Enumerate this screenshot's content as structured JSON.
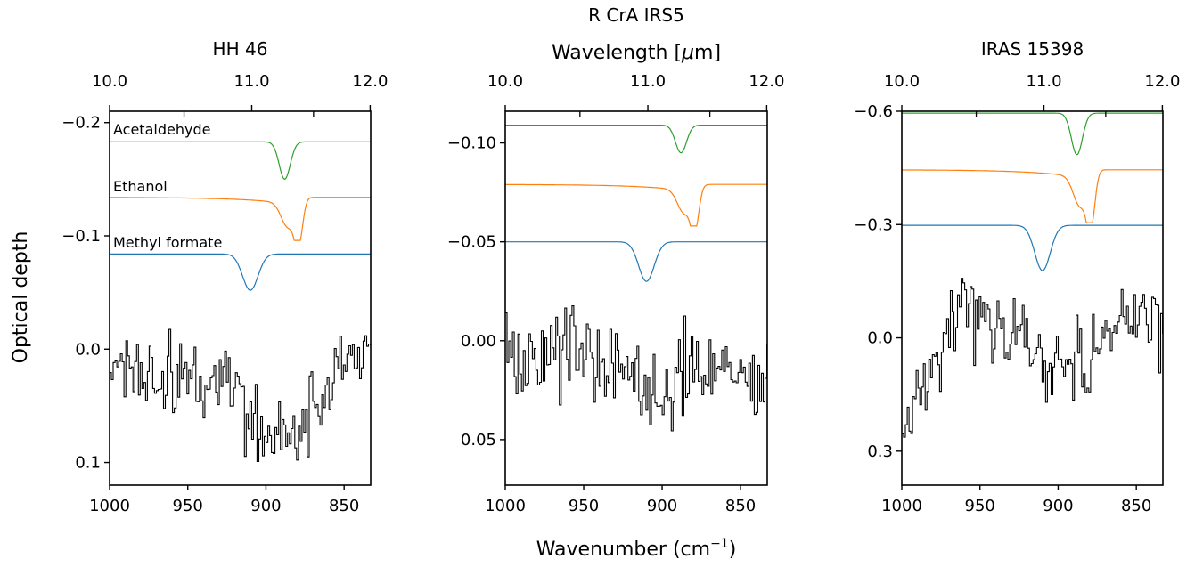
{
  "figure": {
    "suptitle": "R CrA IRS5",
    "top_axis_label_prefix": "Wavelength [",
    "top_axis_label_mu": "μ",
    "top_axis_label_suffix": "m]",
    "x_axis_label_main": "Wavenumber (cm",
    "x_axis_label_sup": "−1",
    "x_axis_label_close": ")",
    "y_axis_label": "Optical depth"
  },
  "chart_data": [
    {
      "type": "line",
      "title": "HH 46",
      "xlim": [
        1000,
        833
      ],
      "ylim": [
        0.12,
        -0.21
      ],
      "xticks": [
        {
          "value": 1000,
          "label": "1000"
        },
        {
          "value": 950,
          "label": "950"
        },
        {
          "value": 900,
          "label": "900"
        },
        {
          "value": 850,
          "label": "850"
        }
      ],
      "yticks": [
        {
          "value": -0.2,
          "label": "−0.2"
        },
        {
          "value": -0.1,
          "label": "−0.1"
        },
        {
          "value": 0.0,
          "label": "0.0"
        },
        {
          "value": 0.1,
          "label": "0.1"
        }
      ],
      "top_ticks": [
        {
          "value": 10.0,
          "label": "10.0"
        },
        {
          "value": 11.0,
          "label": "11.0"
        },
        {
          "value": 12.0,
          "label": "12.0"
        }
      ],
      "top_minor": [
        10.5,
        11.5
      ],
      "series": [
        {
          "name": "Methyl formate",
          "color": "#1f77b4",
          "offset": -0.084,
          "center": 910,
          "depth": 0.032,
          "width": 7,
          "baseline_slope": 0
        },
        {
          "name": "Ethanol",
          "color": "#ff7f0e",
          "offset": -0.134,
          "center": 879,
          "depth": 0.038,
          "width": 3.5,
          "shoulder": 886,
          "baseline_slope": 0
        },
        {
          "name": "Acetaldehyde",
          "color": "#2ca02c",
          "offset": -0.183,
          "center": 888,
          "depth": 0.033,
          "width": 5,
          "baseline_slope": 0
        }
      ],
      "observed": {
        "color": "#000000",
        "noise": 0.022,
        "profile": [
          {
            "x": 1000,
            "y": 0.02
          },
          {
            "x": 960,
            "y": 0.025
          },
          {
            "x": 920,
            "y": 0.03
          },
          {
            "x": 900,
            "y": 0.075
          },
          {
            "x": 880,
            "y": 0.07
          },
          {
            "x": 860,
            "y": 0.035
          },
          {
            "x": 845,
            "y": 0.005
          },
          {
            "x": 833,
            "y": -0.01
          }
        ]
      }
    },
    {
      "type": "line",
      "title": "",
      "xlim": [
        1000,
        833
      ],
      "ylim": [
        0.073,
        -0.116
      ],
      "xticks": [
        {
          "value": 1000,
          "label": "1000"
        },
        {
          "value": 950,
          "label": "950"
        },
        {
          "value": 900,
          "label": "900"
        },
        {
          "value": 850,
          "label": "850"
        }
      ],
      "yticks": [
        {
          "value": -0.1,
          "label": "−0.10"
        },
        {
          "value": -0.05,
          "label": "−0.05"
        },
        {
          "value": 0.0,
          "label": "0.00"
        },
        {
          "value": 0.05,
          "label": "0.05"
        }
      ],
      "top_ticks": [
        {
          "value": 10.0,
          "label": "10.0"
        },
        {
          "value": 11.0,
          "label": "11.0"
        },
        {
          "value": 12.0,
          "label": "12.0"
        }
      ],
      "top_minor": [
        10.5,
        11.5
      ],
      "series": [
        {
          "name": "Methyl formate",
          "color": "#1f77b4",
          "offset": -0.05,
          "center": 910,
          "depth": 0.02,
          "width": 7,
          "baseline_slope": 0
        },
        {
          "name": "Ethanol",
          "color": "#ff7f0e",
          "offset": -0.079,
          "center": 879,
          "depth": 0.021,
          "width": 3.5,
          "shoulder": 886,
          "baseline_slope": 0
        },
        {
          "name": "Acetaldehyde",
          "color": "#2ca02c",
          "offset": -0.109,
          "center": 888,
          "depth": 0.014,
          "width": 5,
          "baseline_slope": 0
        }
      ],
      "observed": {
        "color": "#000000",
        "noise": 0.014,
        "profile": [
          {
            "x": 1000,
            "y": 0.005
          },
          {
            "x": 950,
            "y": 0.008
          },
          {
            "x": 920,
            "y": 0.015
          },
          {
            "x": 905,
            "y": 0.03
          },
          {
            "x": 890,
            "y": 0.025
          },
          {
            "x": 860,
            "y": 0.015
          },
          {
            "x": 833,
            "y": 0.02
          }
        ]
      }
    },
    {
      "type": "line",
      "title": "IRAS 15398",
      "xlim": [
        1000,
        833
      ],
      "ylim": [
        0.39,
        -0.6
      ],
      "xticks": [
        {
          "value": 1000,
          "label": "1000"
        },
        {
          "value": 950,
          "label": "950"
        },
        {
          "value": 900,
          "label": "900"
        },
        {
          "value": 850,
          "label": "850"
        }
      ],
      "yticks": [
        {
          "value": -0.6,
          "label": "−0.6"
        },
        {
          "value": -0.3,
          "label": "−0.3"
        },
        {
          "value": 0.0,
          "label": "0.0"
        },
        {
          "value": 0.3,
          "label": "0.3"
        }
      ],
      "top_ticks": [
        {
          "value": 10.0,
          "label": "10.0"
        },
        {
          "value": 11.0,
          "label": "11.0"
        },
        {
          "value": 12.0,
          "label": "12.0"
        }
      ],
      "top_minor": [
        10.5,
        11.5
      ],
      "series": [
        {
          "name": "Methyl formate",
          "color": "#1f77b4",
          "offset": -0.298,
          "center": 910,
          "depth": 0.12,
          "width": 7,
          "baseline_slope": 0
        },
        {
          "name": "Ethanol",
          "color": "#ff7f0e",
          "offset": -0.445,
          "center": 879,
          "depth": 0.14,
          "width": 3.5,
          "shoulder": 886,
          "baseline_slope": 0
        },
        {
          "name": "Acetaldehyde",
          "color": "#2ca02c",
          "offset": -0.595,
          "center": 888,
          "depth": 0.11,
          "width": 5,
          "baseline_slope": 0
        }
      ],
      "observed": {
        "color": "#000000",
        "noise": 0.07,
        "profile": [
          {
            "x": 1000,
            "y": 0.28
          },
          {
            "x": 985,
            "y": 0.12
          },
          {
            "x": 970,
            "y": -0.05
          },
          {
            "x": 955,
            "y": -0.1
          },
          {
            "x": 930,
            "y": 0.0
          },
          {
            "x": 905,
            "y": 0.06
          },
          {
            "x": 880,
            "y": 0.05
          },
          {
            "x": 860,
            "y": -0.02
          },
          {
            "x": 833,
            "y": -0.06
          }
        ]
      }
    }
  ]
}
